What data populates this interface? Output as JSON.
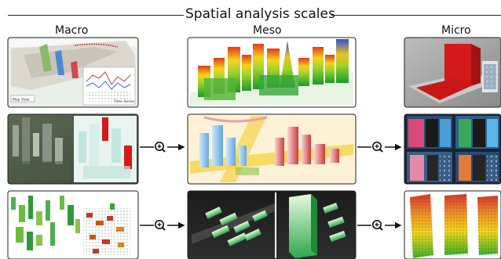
{
  "title": "Spatial analysis scales",
  "columns": [
    {
      "id": "macro",
      "label": "Macro"
    },
    {
      "id": "meso",
      "label": "Meso"
    },
    {
      "id": "micro",
      "label": "Micro"
    }
  ],
  "connector_icon": "zoom-in-icon",
  "panel_texts": {
    "map_view_label": "Map View",
    "time_series_label": "Time Series"
  }
}
